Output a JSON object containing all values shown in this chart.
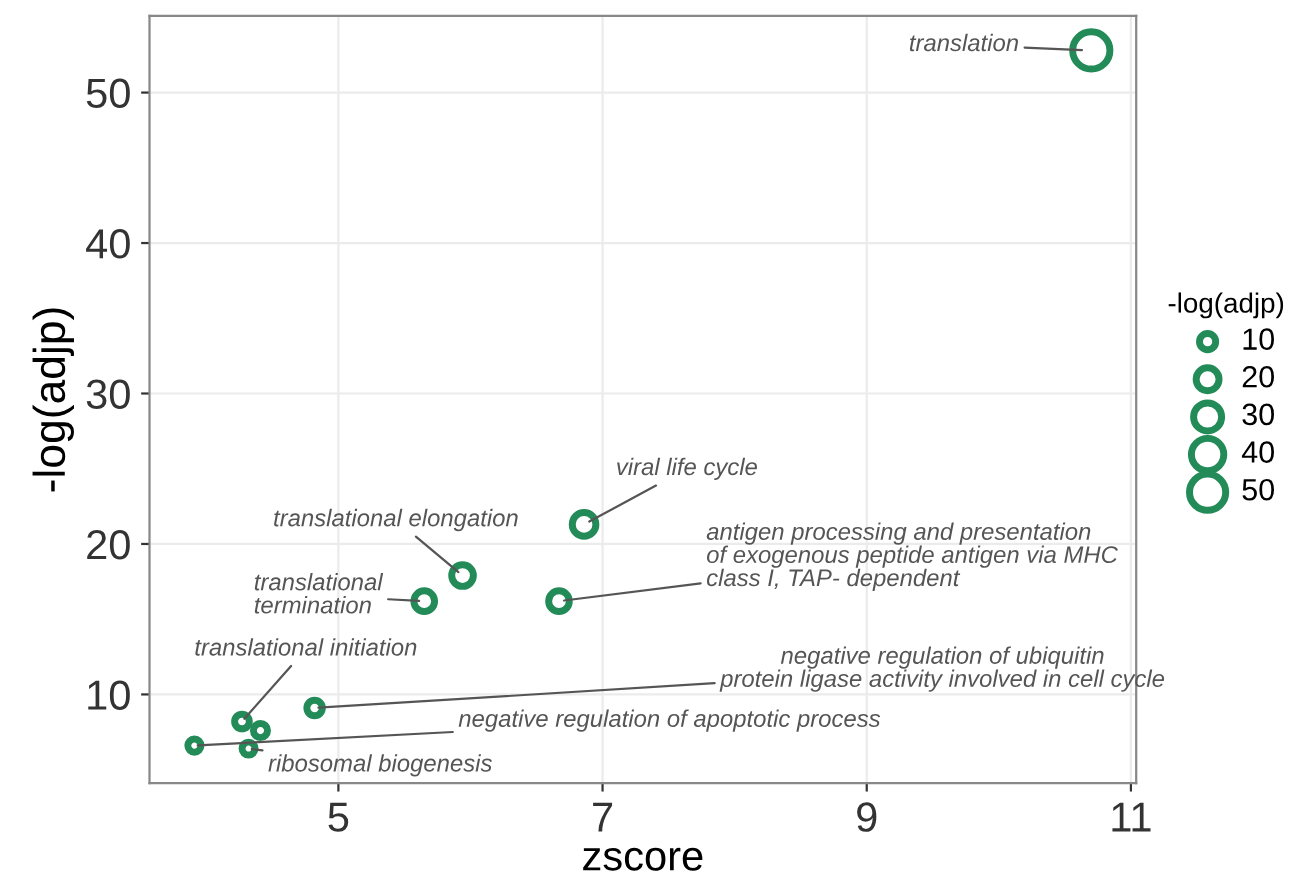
{
  "chart_data": {
    "type": "bubble",
    "xlabel": "zscore",
    "ylabel": "-log(adjp)",
    "legend_title": "-log(adjp)",
    "xlim": [
      3.57,
      11.04
    ],
    "ylim": [
      4.1,
      55.1
    ],
    "xticks": [
      5,
      7,
      9,
      11
    ],
    "yticks": [
      10,
      20,
      30,
      40,
      50
    ],
    "grid": true,
    "series": [
      {
        "color": "#238b57",
        "x": [
          10.7,
          6.86,
          5.94,
          5.65,
          6.67,
          4.82,
          4.27,
          3.91,
          4.32,
          4.41
        ],
        "values": [
          52.8,
          21.3,
          17.9,
          16.2,
          16.2,
          9.1,
          8.2,
          6.6,
          6.4,
          7.6
        ],
        "sizes": [
          52.8,
          21.3,
          17.9,
          16.2,
          16.2,
          9.1,
          8.2,
          6.6,
          6.4,
          7.6
        ]
      }
    ],
    "size_legend": [
      10,
      20,
      30,
      40,
      50
    ],
    "annotations": [
      {
        "text": "translation",
        "x": 10.7,
        "y": 52.8
      },
      {
        "text": "viral life cycle",
        "x": 6.86,
        "y": 21.3
      },
      {
        "text": "translational elongation",
        "x": 5.94,
        "y": 17.9
      },
      {
        "text": "translational\ntermination",
        "x": 5.65,
        "y": 16.2
      },
      {
        "text": "antigen processing and presentation\nof exogenous peptide antigen via MHC\nclass I, TAP- dependent",
        "x": 6.67,
        "y": 16.2
      },
      {
        "text": "negative regulation of ubiquitin\nprotein ligase activity involved in cell cycle",
        "x": 4.82,
        "y": 9.1
      },
      {
        "text": "translational initiation",
        "x": 4.27,
        "y": 8.2
      },
      {
        "text": "negative regulation of apoptotic process",
        "x": 3.91,
        "y": 6.6
      },
      {
        "text": "ribosomal biogenesis",
        "x": 4.32,
        "y": 6.4
      }
    ]
  }
}
